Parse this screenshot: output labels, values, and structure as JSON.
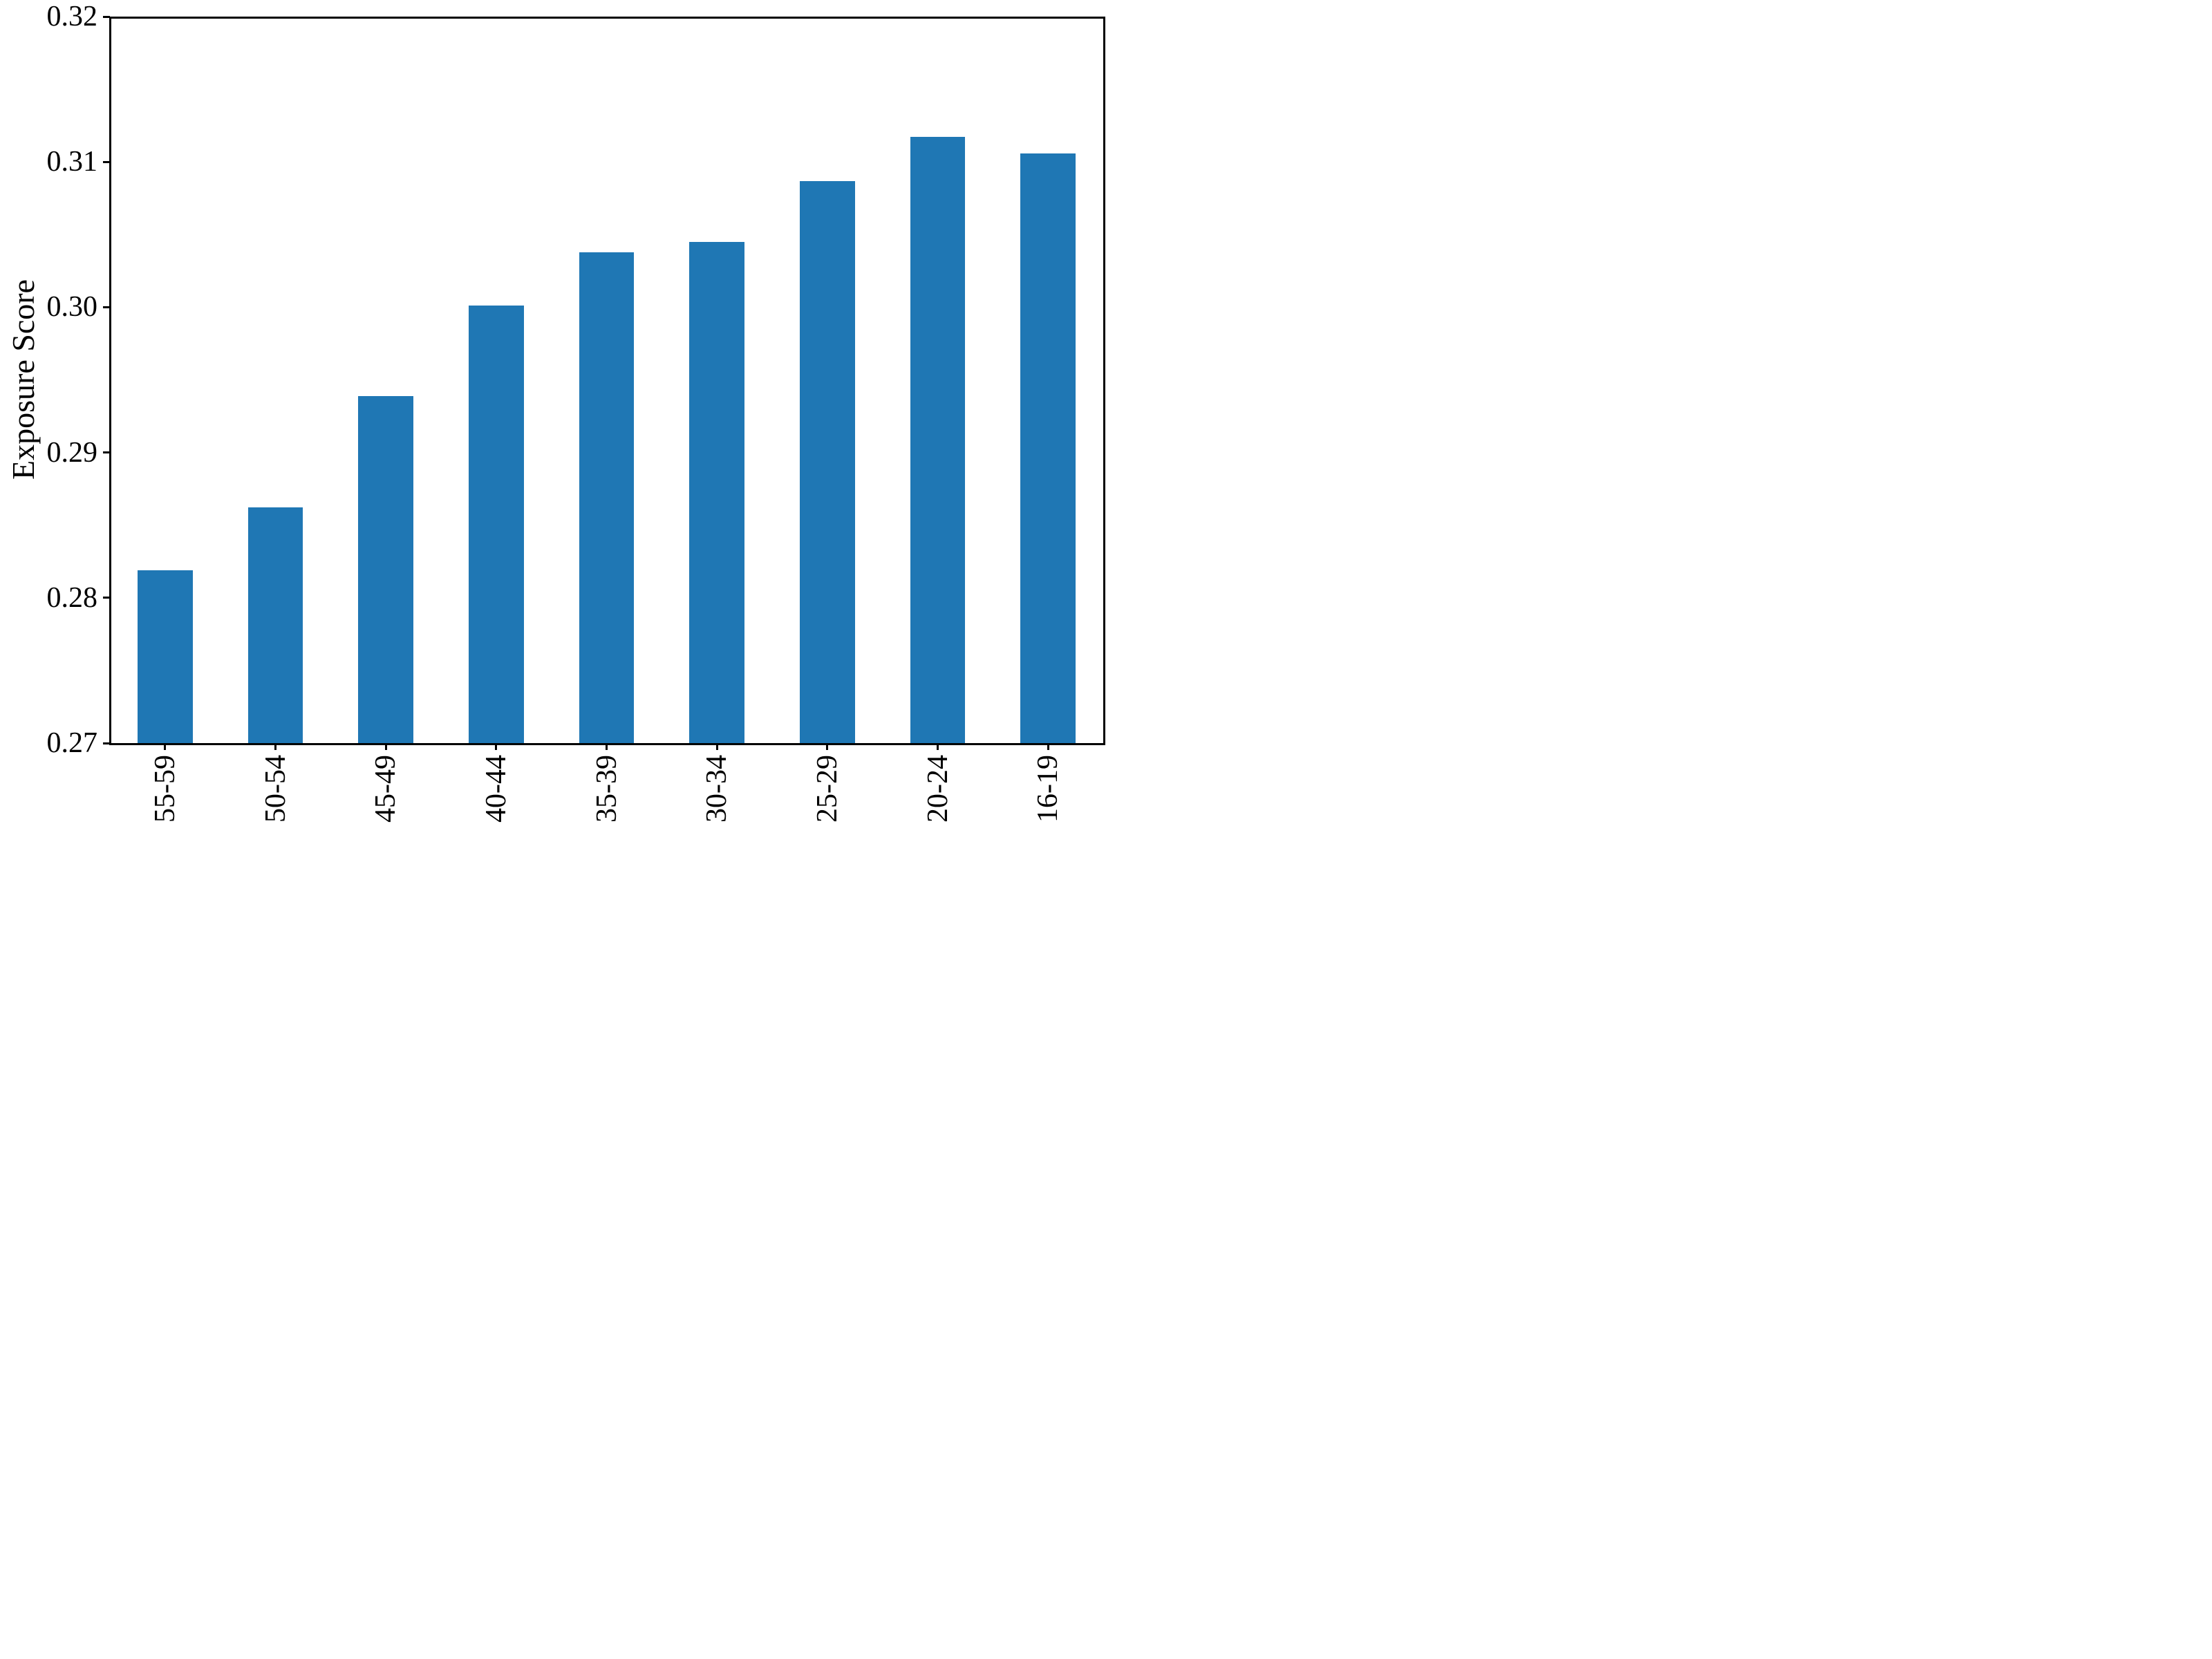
{
  "figure": {
    "background": "#ffffff",
    "text_color": "#000000"
  },
  "chart_data": {
    "type": "bar",
    "title": "",
    "xlabel": "",
    "ylabel": "Exposure Score",
    "categories": [
      "55-59",
      "50-54",
      "45-49",
      "40-44",
      "35-39",
      "30-34",
      "25-29",
      "20-24",
      "16-19"
    ],
    "values": [
      0.2819,
      0.2862,
      0.2939,
      0.3001,
      0.3038,
      0.3045,
      0.3087,
      0.3117,
      0.3106
    ],
    "ylim": [
      0.27,
      0.32
    ],
    "yticks": [
      0.27,
      0.28,
      0.29,
      0.3,
      0.31,
      0.32
    ],
    "ytick_labels": [
      "0.27",
      "0.28",
      "0.29",
      "0.30",
      "0.31",
      "0.32"
    ],
    "xtick_label_rotation_deg": 90,
    "bar_color": "#1f77b4",
    "bar_width_fraction": 0.5,
    "grid": false,
    "legend_position": "none"
  }
}
